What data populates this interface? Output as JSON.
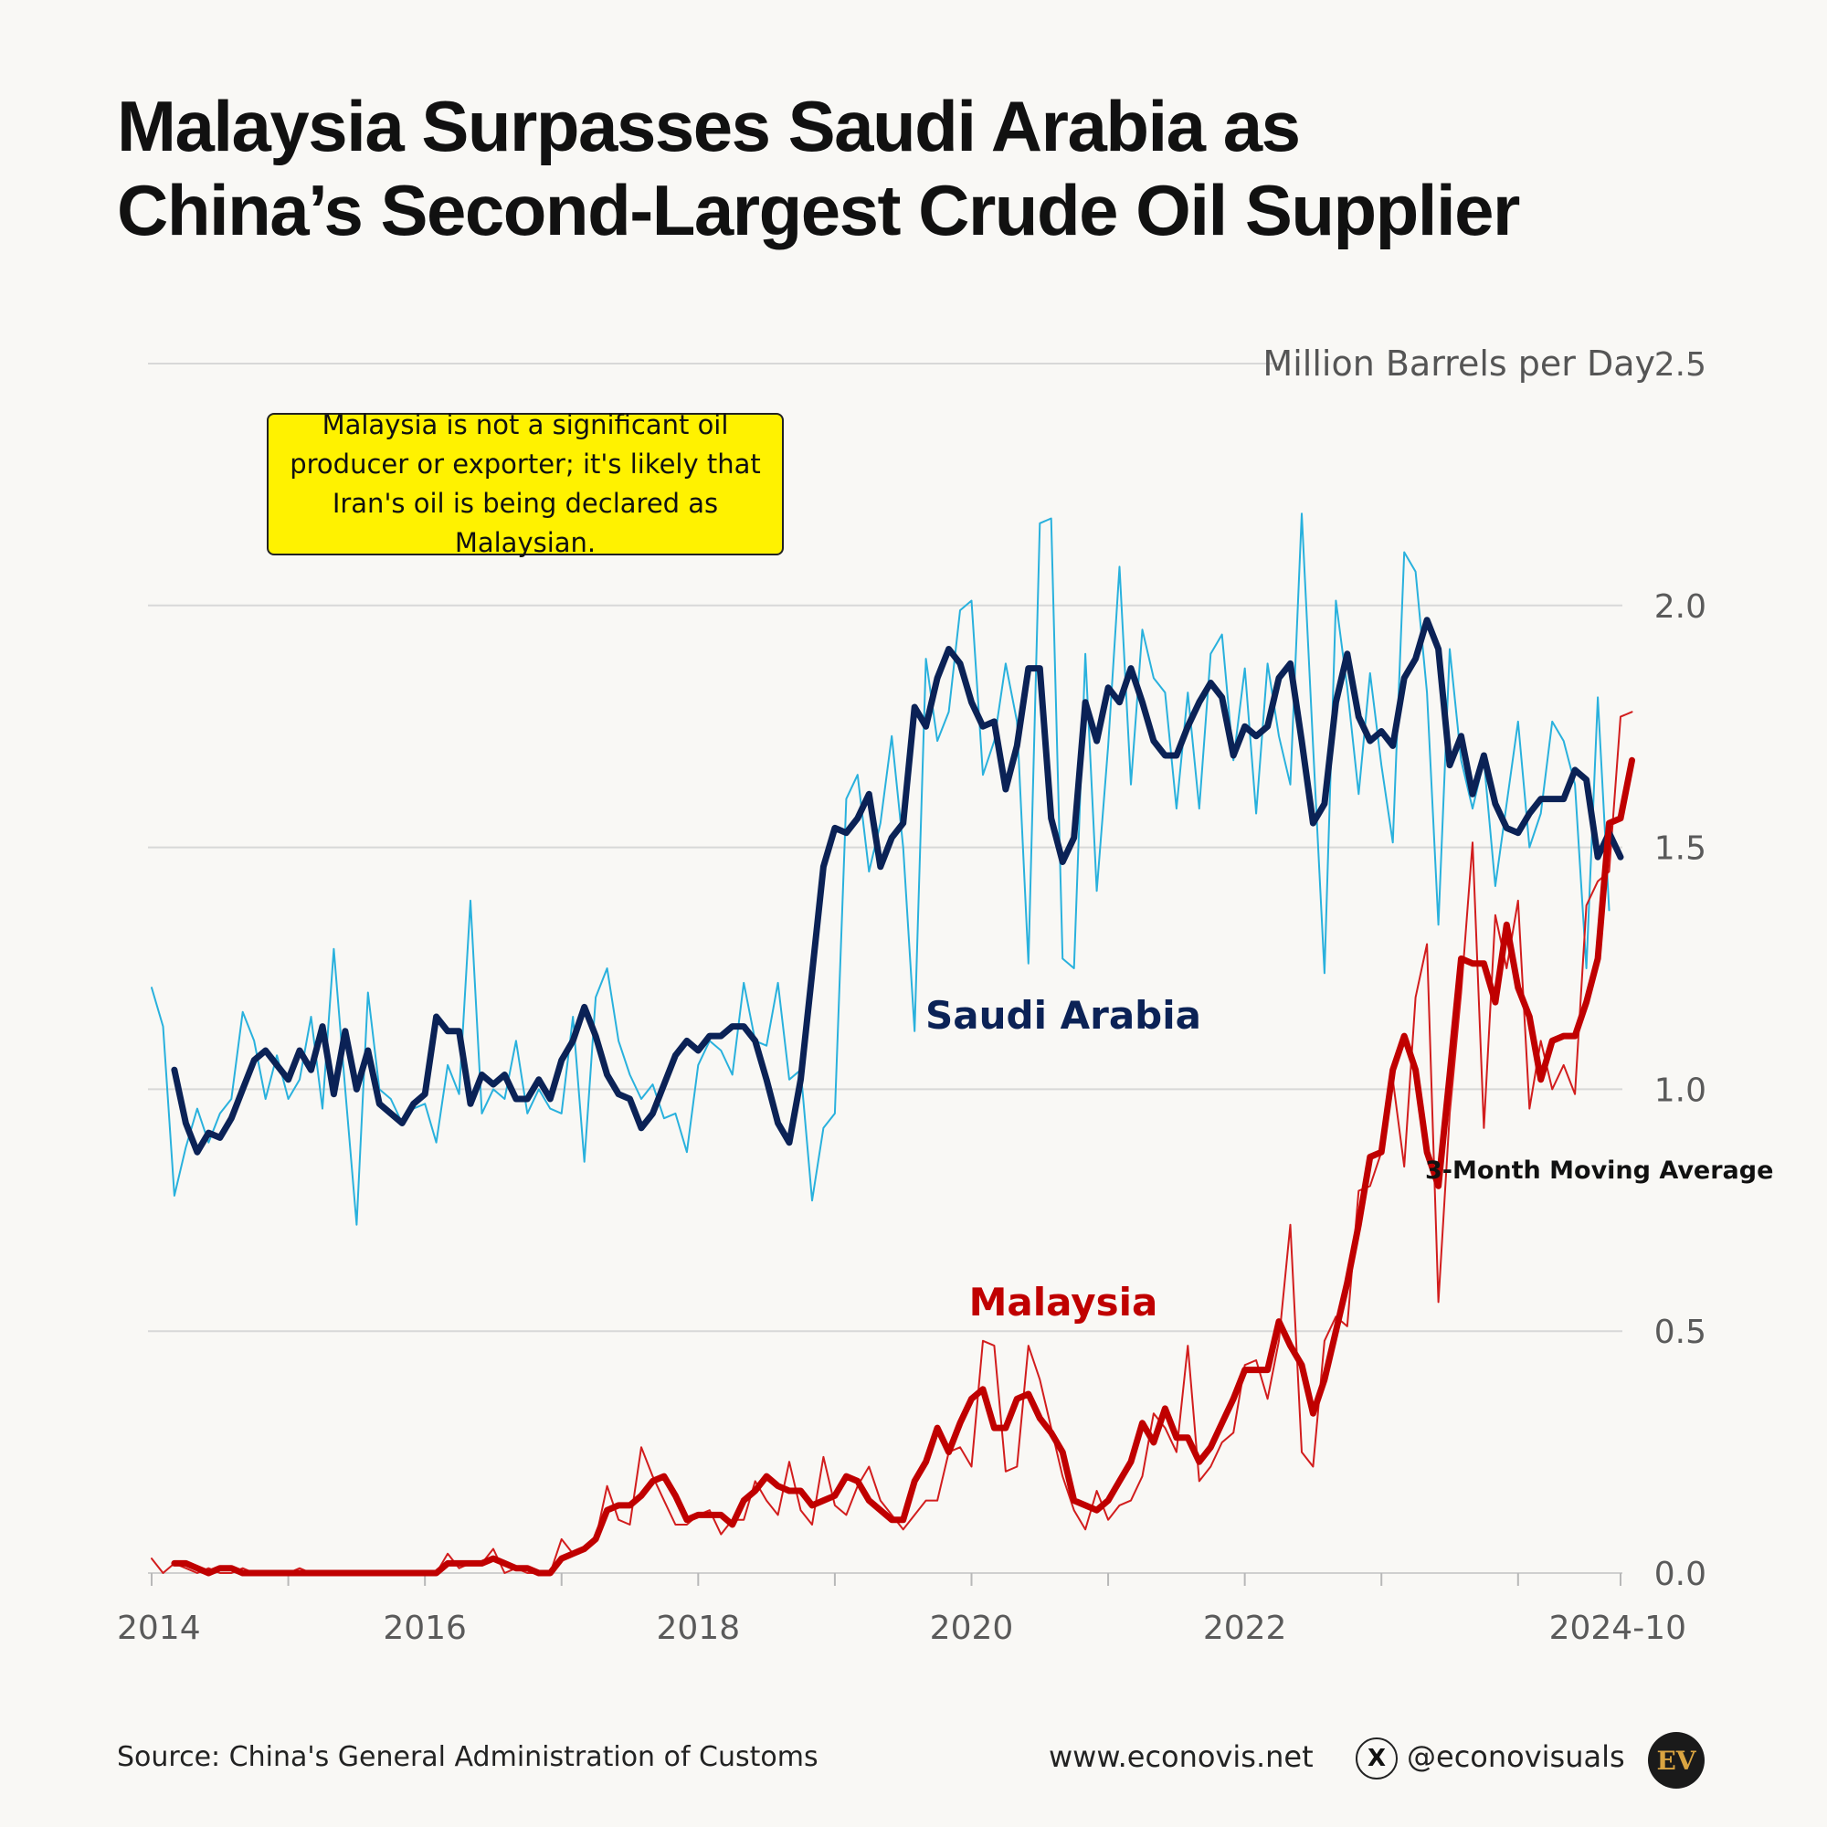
{
  "title": {
    "line1": "Malaysia Surpasses Saudi Arabia as",
    "line2": "China’s Second-Largest Crude Oil Supplier"
  },
  "note": "Malaysia is not a significant oil producer or exporter; it's likely that Iran's oil is being declared as Malaysian.",
  "footer": {
    "source": "Source: China's General Administration of Customs",
    "website": "www.econovis.net",
    "x_glyph": "X",
    "handle": "@econovisuals",
    "logo": "EV"
  },
  "icons": {
    "x_logo": "x-logo-icon",
    "brand_logo": "ev-logo-icon"
  },
  "chart_data": {
    "type": "line",
    "unit_label": "Million Barrels per Day",
    "y_ticks": [
      "0.0",
      "0.5",
      "1.0",
      "1.5",
      "2.0",
      "2.5"
    ],
    "x_tick_labels": [
      "2014",
      "2016",
      "2018",
      "2020",
      "2022",
      "2024-10"
    ],
    "ylim": [
      0,
      2.5
    ],
    "grid": true,
    "ma_label": "3-Month Moving Average",
    "series_colors": {
      "saudi_monthly": "#29b1dd",
      "saudi_ma": "#0b2256",
      "malaysia_monthly": "#d21d1d",
      "malaysia_ma": "#c00000"
    },
    "x_start": "2014-01",
    "x_end": "2024-10",
    "series": [
      {
        "name": "Saudi Arabia",
        "kind": "monthly",
        "values": [
          1.21,
          1.13,
          0.78,
          0.88,
          0.96,
          0.89,
          0.95,
          0.98,
          1.16,
          1.1,
          0.98,
          1.07,
          0.98,
          1.02,
          1.15,
          0.96,
          1.29,
          1.0,
          0.72,
          1.2,
          1.0,
          0.98,
          0.93,
          0.96,
          0.97,
          0.89,
          1.05,
          0.99,
          1.39,
          0.95,
          1.0,
          0.98,
          1.1,
          0.95,
          1.0,
          0.96,
          0.95,
          1.15,
          0.85,
          1.19,
          1.25,
          1.1,
          1.03,
          0.98,
          1.01,
          0.94,
          0.95,
          0.87,
          1.05,
          1.1,
          1.08,
          1.03,
          1.22,
          1.1,
          1.09,
          1.22,
          1.02,
          1.04,
          0.77,
          0.92,
          0.95,
          1.6,
          1.65,
          1.45,
          1.55,
          1.73,
          1.5,
          1.12,
          1.89,
          1.72,
          1.78,
          1.99,
          2.01,
          1.65,
          1.72,
          1.88,
          1.76,
          1.26,
          2.17,
          2.18,
          1.27,
          1.25,
          1.9,
          1.41,
          1.71,
          2.08,
          1.63,
          1.95,
          1.85,
          1.82,
          1.58,
          1.82,
          1.58,
          1.9,
          1.94,
          1.68,
          1.87,
          1.57,
          1.88,
          1.73,
          1.63,
          2.19,
          1.71,
          1.24,
          2.01,
          1.83,
          1.61,
          1.86,
          1.67,
          1.51,
          2.11,
          2.07,
          1.82,
          1.34,
          1.91,
          1.68,
          1.58,
          1.68,
          1.42,
          1.59,
          1.76,
          1.5,
          1.57,
          1.76,
          1.72,
          1.63,
          1.25,
          1.81,
          1.37
        ]
      },
      {
        "name": "Saudi Arabia",
        "kind": "3-month moving average",
        "values": [
          null,
          null,
          1.04,
          0.93,
          0.87,
          0.91,
          0.9,
          0.94,
          1.0,
          1.06,
          1.08,
          1.05,
          1.02,
          1.08,
          1.04,
          1.13,
          0.99,
          1.12,
          1.0,
          1.08,
          0.97,
          0.95,
          0.93,
          0.97,
          0.99,
          1.15,
          1.12,
          1.12,
          0.97,
          1.03,
          1.01,
          1.03,
          0.98,
          0.98,
          1.02,
          0.98,
          1.06,
          1.1,
          1.17,
          1.11,
          1.03,
          0.99,
          0.98,
          0.92,
          0.95,
          1.01,
          1.07,
          1.1,
          1.08,
          1.11,
          1.11,
          1.13,
          1.13,
          1.1,
          1.02,
          0.93,
          0.89,
          1.02,
          1.24,
          1.46,
          1.54,
          1.53,
          1.56,
          1.61,
          1.46,
          1.52,
          1.55,
          1.79,
          1.75,
          1.85,
          1.91,
          1.88,
          1.8,
          1.75,
          1.76,
          1.62,
          1.71,
          1.87,
          1.87,
          1.56,
          1.47,
          1.52,
          1.8,
          1.72,
          1.83,
          1.8,
          1.87,
          1.8,
          1.72,
          1.69,
          1.69,
          1.75,
          1.8,
          1.84,
          1.81,
          1.69,
          1.75,
          1.73,
          1.75,
          1.85,
          1.88,
          1.72,
          1.55,
          1.59,
          1.8,
          1.9,
          1.77,
          1.72,
          1.74,
          1.71,
          1.85,
          1.89,
          1.97,
          1.91,
          1.67,
          1.73,
          1.61,
          1.69,
          1.59,
          1.54,
          1.53,
          1.57,
          1.6,
          1.6,
          1.6,
          1.66,
          1.64,
          1.48,
          1.53,
          1.48
        ]
      },
      {
        "name": "Malaysia",
        "kind": "monthly",
        "values": [
          0.03,
          0.0,
          0.02,
          0.01,
          0.0,
          0.01,
          0.0,
          0.0,
          0.01,
          0.0,
          0.0,
          0.0,
          0.0,
          0.01,
          0.0,
          0.0,
          0.0,
          0.0,
          0.0,
          0.0,
          0.0,
          0.0,
          0.0,
          0.0,
          0.0,
          0.0,
          0.04,
          0.01,
          0.02,
          0.02,
          0.05,
          0.0,
          0.01,
          0.0,
          0.0,
          0.0,
          0.07,
          0.04,
          0.05,
          0.07,
          0.18,
          0.11,
          0.1,
          0.26,
          0.2,
          0.15,
          0.1,
          0.1,
          0.12,
          0.13,
          0.08,
          0.11,
          0.11,
          0.19,
          0.15,
          0.12,
          0.23,
          0.13,
          0.1,
          0.24,
          0.14,
          0.12,
          0.18,
          0.22,
          0.15,
          0.12,
          0.09,
          0.12,
          0.15,
          0.15,
          0.25,
          0.26,
          0.22,
          0.48,
          0.47,
          0.21,
          0.22,
          0.47,
          0.4,
          0.3,
          0.2,
          0.13,
          0.09,
          0.17,
          0.11,
          0.14,
          0.15,
          0.2,
          0.33,
          0.3,
          0.25,
          0.47,
          0.19,
          0.22,
          0.27,
          0.29,
          0.43,
          0.44,
          0.36,
          0.48,
          0.72,
          0.25,
          0.22,
          0.48,
          0.53,
          0.51,
          0.79,
          0.8,
          0.87,
          1.02,
          0.84,
          1.19,
          1.3,
          0.56,
          0.95,
          1.2,
          1.51,
          0.92,
          1.36,
          1.25,
          1.39,
          0.96,
          1.1,
          1.0,
          1.05,
          0.99,
          1.38,
          1.43,
          1.45,
          1.77,
          1.78
        ]
      },
      {
        "name": "Malaysia",
        "kind": "3-month moving average",
        "values": [
          null,
          null,
          0.02,
          0.02,
          0.01,
          0.0,
          0.01,
          0.01,
          0.0,
          0.0,
          0.0,
          0.0,
          0.0,
          0.0,
          0.0,
          0.0,
          0.0,
          0.0,
          0.0,
          0.0,
          0.0,
          0.0,
          0.0,
          0.0,
          0.0,
          0.0,
          0.02,
          0.02,
          0.02,
          0.02,
          0.03,
          0.02,
          0.01,
          0.01,
          0.0,
          0.0,
          0.03,
          0.04,
          0.05,
          0.07,
          0.13,
          0.14,
          0.14,
          0.16,
          0.19,
          0.2,
          0.16,
          0.11,
          0.12,
          0.12,
          0.12,
          0.1,
          0.15,
          0.17,
          0.2,
          0.18,
          0.17,
          0.17,
          0.14,
          0.15,
          0.16,
          0.2,
          0.19,
          0.15,
          0.13,
          0.11,
          0.11,
          0.19,
          0.23,
          0.3,
          0.25,
          0.31,
          0.36,
          0.38,
          0.3,
          0.3,
          0.36,
          0.37,
          0.32,
          0.29,
          0.25,
          0.15,
          0.14,
          0.13,
          0.15,
          0.19,
          0.23,
          0.31,
          0.27,
          0.34,
          0.28,
          0.28,
          0.23,
          0.26,
          0.31,
          0.36,
          0.42,
          0.42,
          0.42,
          0.52,
          0.47,
          0.43,
          0.33,
          0.4,
          0.5,
          0.6,
          0.72,
          0.86,
          0.87,
          1.04,
          1.11,
          1.04,
          0.87,
          0.8,
          1.03,
          1.27,
          1.26,
          1.26,
          1.18,
          1.34,
          1.21,
          1.15,
          1.02,
          1.1,
          1.11,
          1.11,
          1.18,
          1.27,
          1.55,
          1.56,
          1.68
        ]
      }
    ]
  }
}
